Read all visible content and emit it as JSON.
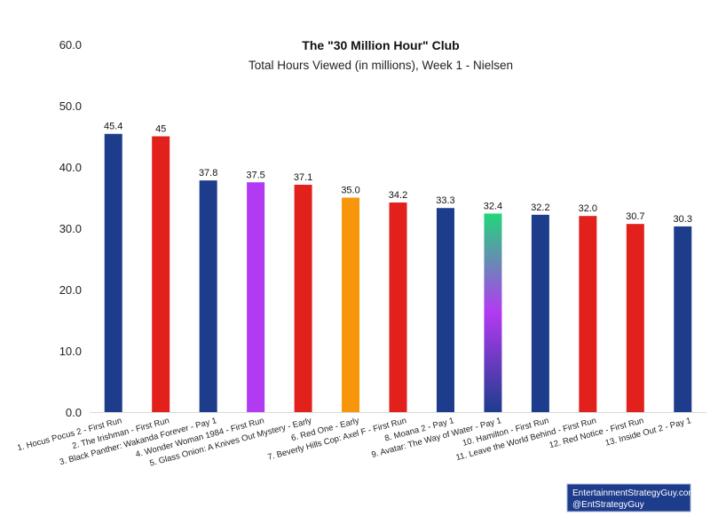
{
  "chart_data": {
    "type": "bar",
    "title": "The \"30 Million Hour\" Club",
    "subtitle": "Total Hours Viewed (in millions), Week 1 - Nielsen",
    "xlabel": "",
    "ylabel": "",
    "ylim": [
      0,
      60
    ],
    "yticks": [
      "0.0",
      "10.0",
      "20.0",
      "30.0",
      "40.0",
      "50.0",
      "60.0"
    ],
    "grid": false,
    "categories": [
      "1. Hocus Pocus 2 - First Run",
      "2. The Irishman - First Run",
      "3. Black Panther: Wakanda Forever - Pay 1",
      "4. Wonder Woman 1984 - First Run",
      "5. Glass Onion: A Knives Out Mystery - Early",
      "6. Red One - Early",
      "7. Beverly Hills Cop: Axel F - First Run",
      "8. Moana 2 - Pay 1",
      "9. Avatar: The Way of Water - Pay 1",
      "10. Hamilton - First Run",
      "11. Leave the World Behind - First Run",
      "12. Red Notice - First Run",
      "13. Inside Out 2 - Pay 1"
    ],
    "values": [
      45.4,
      45,
      37.8,
      37.5,
      37.1,
      35.0,
      34.2,
      33.3,
      32.4,
      32.2,
      32.0,
      30.7,
      30.3
    ],
    "value_labels": [
      "45.4",
      "45",
      "37.8",
      "37.5",
      "37.1",
      "35.0",
      "34.2",
      "33.3",
      "32.4",
      "32.2",
      "32.0",
      "30.7",
      "30.3"
    ],
    "bar_colors": [
      "#1d3c8c",
      "#e3211c",
      "#1d3c8c",
      "#b23af2",
      "#e3211c",
      "#f7960a",
      "#e3211c",
      "#1d3c8c",
      "gradient",
      "#1d3c8c",
      "#e3211c",
      "#e3211c",
      "#1d3c8c"
    ],
    "gradient_colors": [
      "#22d67a",
      "#b23af2",
      "#1d3c8c"
    ]
  },
  "credit": {
    "line1": "EntertainmentStrategyGuy.com",
    "line2": "@EntStrategyGuy",
    "background": "#1d3c8c"
  }
}
